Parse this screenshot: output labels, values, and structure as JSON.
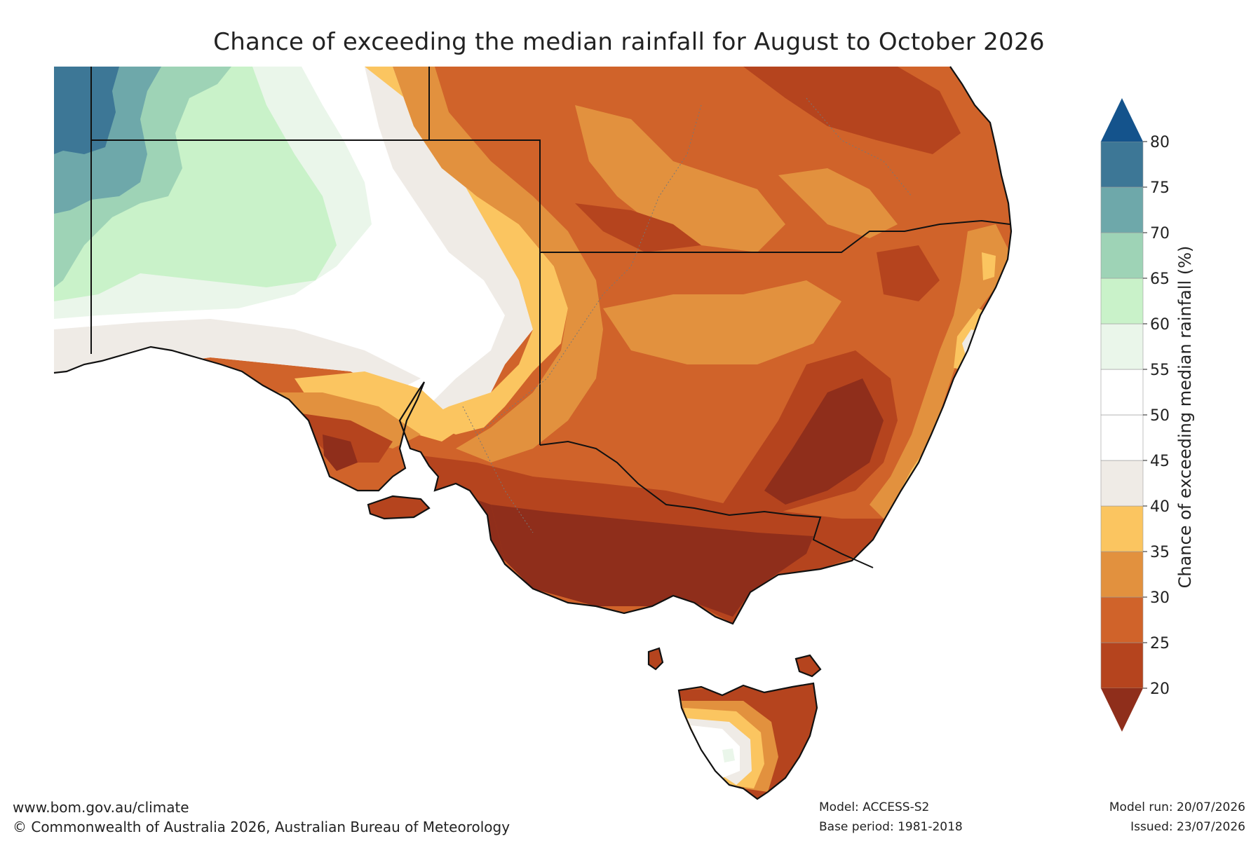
{
  "title": "Chance of exceeding the median rainfall for August to October 2026",
  "colorbar": {
    "label": "Chance of exceeding median rainfall (%)",
    "ticks": [
      20,
      25,
      30,
      35,
      40,
      45,
      50,
      55,
      60,
      65,
      70,
      75,
      80
    ],
    "bands": [
      {
        "from": 20,
        "to": 25,
        "color": "#b5441e"
      },
      {
        "from": 25,
        "to": 30,
        "color": "#d0632a"
      },
      {
        "from": 30,
        "to": 35,
        "color": "#e2913e"
      },
      {
        "from": 35,
        "to": 40,
        "color": "#fbc560"
      },
      {
        "from": 40,
        "to": 45,
        "color": "#efebe6"
      },
      {
        "from": 45,
        "to": 50,
        "color": "#ffffff"
      },
      {
        "from": 50,
        "to": 55,
        "color": "#ffffff"
      },
      {
        "from": 55,
        "to": 60,
        "color": "#eaf6ea"
      },
      {
        "from": 60,
        "to": 65,
        "color": "#c9f2c9"
      },
      {
        "from": 65,
        "to": 70,
        "color": "#9ed3b6"
      },
      {
        "from": 70,
        "to": 75,
        "color": "#6ea8aa"
      },
      {
        "from": 75,
        "to": 80,
        "color": "#3d7796"
      }
    ],
    "under_color": "#8f2e1b",
    "over_color": "#14538c"
  },
  "footer": {
    "website": "www.bom.gov.au/climate",
    "copyright": "© Commonwealth of Australia 2026, Australian Bureau of Meteorology",
    "model": "Model: ACCESS-S2",
    "base_period": "Base period: 1981-2018",
    "model_run": "Model run: 20/07/2026",
    "issued": "Issued: 23/07/2026"
  }
}
